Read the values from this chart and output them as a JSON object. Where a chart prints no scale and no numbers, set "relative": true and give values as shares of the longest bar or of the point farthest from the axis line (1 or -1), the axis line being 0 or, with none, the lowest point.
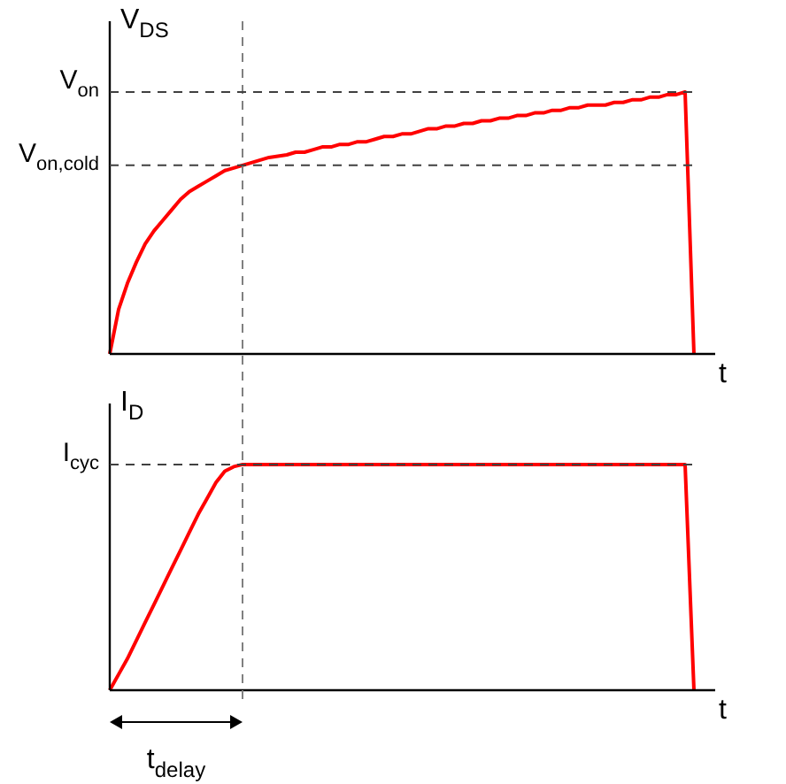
{
  "chart_data": [
    {
      "type": "line",
      "relative": true,
      "ylabel": "V$_{DS}$",
      "xlabel": "t",
      "color": "#ff0000",
      "categories": [
        null,
        null,
        null,
        null,
        null,
        null,
        null,
        null,
        null,
        null,
        null,
        null,
        null,
        null,
        null,
        null,
        null,
        null,
        null,
        null,
        null,
        null,
        null,
        null,
        null,
        null,
        null,
        null,
        null,
        null,
        null,
        null,
        null,
        null,
        null,
        null,
        null,
        null,
        null,
        null,
        null,
        null,
        null,
        null,
        null,
        null,
        null,
        null,
        null,
        null,
        null,
        null,
        null,
        null,
        null,
        null,
        null,
        null,
        null,
        null,
        null,
        null,
        null,
        null,
        null,
        null,
        null
      ],
      "values": [
        0,
        0.17,
        0.27,
        0.35,
        0.42,
        0.47,
        0.51,
        0.55,
        0.59,
        0.62,
        0.64,
        0.66,
        0.68,
        0.7,
        0.71,
        0.72,
        0.73,
        0.74,
        0.75,
        0.755,
        0.76,
        0.77,
        0.77,
        0.78,
        0.79,
        0.79,
        0.8,
        0.8,
        0.81,
        0.81,
        0.82,
        0.83,
        0.83,
        0.84,
        0.84,
        0.85,
        0.86,
        0.86,
        0.87,
        0.87,
        0.88,
        0.88,
        0.89,
        0.89,
        0.9,
        0.9,
        0.91,
        0.91,
        0.92,
        0.92,
        0.93,
        0.93,
        0.94,
        0.94,
        0.95,
        0.95,
        0.95,
        0.96,
        0.96,
        0.97,
        0.97,
        0.98,
        0.98,
        0.99,
        0.99,
        1,
        0
      ],
      "ref_lines": [
        {
          "axis": "y",
          "value": 1,
          "label": "V$_{on}$",
          "color": "#404040",
          "line_style": "dashed"
        },
        {
          "axis": "y",
          "value": 0.72,
          "label": "V$_{on,cold}$",
          "color": "#404040",
          "line_style": "dashed"
        }
      ]
    },
    {
      "type": "line",
      "relative": true,
      "ylabel": "I$_{D}$",
      "xlabel": "t",
      "color": "#ff0000",
      "categories": [
        null,
        null,
        null,
        null,
        null,
        null,
        null,
        null,
        null,
        null,
        null,
        null,
        null,
        null,
        null,
        null,
        null,
        null,
        null,
        null,
        null,
        null,
        null,
        null,
        null,
        null,
        null,
        null,
        null,
        null,
        null,
        null,
        null,
        null,
        null,
        null,
        null,
        null,
        null,
        null,
        null,
        null,
        null,
        null,
        null,
        null,
        null,
        null,
        null,
        null,
        null,
        null,
        null,
        null,
        null,
        null,
        null,
        null,
        null,
        null,
        null,
        null,
        null,
        null,
        null,
        null,
        null
      ],
      "values": [
        0,
        0.07,
        0.14,
        0.22,
        0.3,
        0.38,
        0.46,
        0.54,
        0.62,
        0.7,
        0.78,
        0.85,
        0.92,
        0.97,
        0.99,
        1,
        1,
        1,
        1,
        1,
        1,
        1,
        1,
        1,
        1,
        1,
        1,
        1,
        1,
        1,
        1,
        1,
        1,
        1,
        1,
        1,
        1,
        1,
        1,
        1,
        1,
        1,
        1,
        1,
        1,
        1,
        1,
        1,
        1,
        1,
        1,
        1,
        1,
        1,
        1,
        1,
        1,
        1,
        1,
        1,
        1,
        1,
        1,
        1,
        1,
        1,
        0
      ],
      "ref_lines": [
        {
          "axis": "y",
          "value": 1,
          "label": "I$_{cyc}$",
          "color": "#404040",
          "line_style": "dashed"
        }
      ],
      "annotations": [
        "t$_{delay}$"
      ]
    }
  ]
}
